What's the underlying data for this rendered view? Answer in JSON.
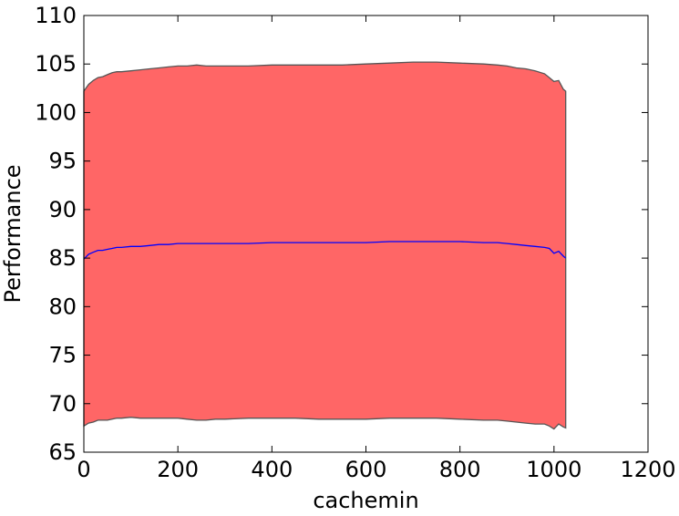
{
  "chart_data": {
    "type": "area",
    "title": "",
    "xlabel": "cachemin",
    "ylabel": "Performance",
    "xlim": [
      0,
      1200
    ],
    "ylim": [
      65,
      110
    ],
    "xticks": [
      0,
      200,
      400,
      600,
      800,
      1000,
      1200
    ],
    "yticks": [
      65,
      70,
      75,
      80,
      85,
      90,
      95,
      100,
      105,
      110
    ],
    "grid": false,
    "legend": "none",
    "colors": {
      "band_fill": "#ff6666",
      "band_edge": "#555555",
      "mean_line": "#0000ff"
    },
    "x": [
      0,
      10,
      20,
      30,
      40,
      50,
      60,
      70,
      80,
      100,
      120,
      140,
      160,
      180,
      200,
      220,
      240,
      260,
      280,
      300,
      350,
      400,
      450,
      500,
      550,
      600,
      650,
      700,
      750,
      800,
      850,
      880,
      900,
      920,
      940,
      960,
      980,
      990,
      1000,
      1010,
      1020,
      1025
    ],
    "mean": [
      84.9,
      85.4,
      85.6,
      85.8,
      85.8,
      85.9,
      86.0,
      86.1,
      86.1,
      86.2,
      86.2,
      86.3,
      86.4,
      86.4,
      86.5,
      86.5,
      86.5,
      86.5,
      86.5,
      86.5,
      86.5,
      86.6,
      86.6,
      86.6,
      86.6,
      86.6,
      86.7,
      86.7,
      86.7,
      86.7,
      86.6,
      86.6,
      86.5,
      86.4,
      86.3,
      86.2,
      86.1,
      86.0,
      85.5,
      85.7,
      85.2,
      85.0
    ],
    "upper": [
      102.2,
      102.9,
      103.3,
      103.6,
      103.7,
      103.9,
      104.1,
      104.2,
      104.2,
      104.3,
      104.4,
      104.5,
      104.6,
      104.7,
      104.8,
      104.8,
      104.9,
      104.8,
      104.8,
      104.8,
      104.8,
      104.9,
      104.9,
      104.9,
      104.9,
      105.0,
      105.1,
      105.2,
      105.2,
      105.1,
      105.0,
      104.9,
      104.8,
      104.6,
      104.5,
      104.3,
      104.0,
      103.6,
      103.2,
      103.3,
      102.4,
      102.2
    ],
    "lower": [
      67.7,
      68.0,
      68.1,
      68.3,
      68.3,
      68.3,
      68.4,
      68.5,
      68.5,
      68.6,
      68.5,
      68.5,
      68.5,
      68.5,
      68.5,
      68.4,
      68.3,
      68.3,
      68.4,
      68.4,
      68.5,
      68.5,
      68.5,
      68.4,
      68.4,
      68.4,
      68.5,
      68.5,
      68.5,
      68.4,
      68.3,
      68.3,
      68.2,
      68.1,
      68.0,
      67.9,
      67.9,
      67.7,
      67.4,
      67.9,
      67.6,
      67.5
    ]
  }
}
